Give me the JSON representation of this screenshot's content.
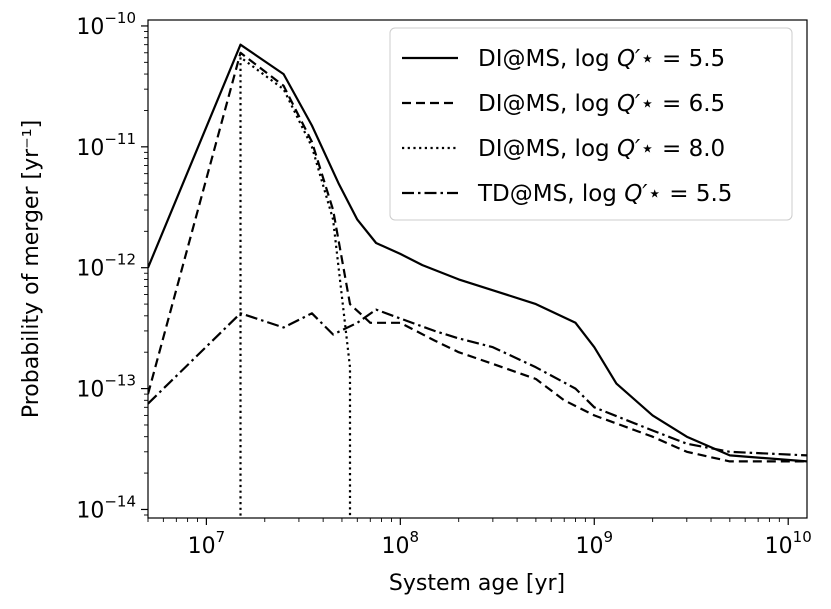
{
  "chart_data": {
    "type": "line",
    "xlabel": "System age [yr]",
    "ylabel": "Probability of merger [yr⁻¹]",
    "x_scale": "log",
    "y_scale": "log",
    "xlim": [
      5000000,
      12500000000
    ],
    "ylim": [
      8.5e-15,
      1.12e-10
    ],
    "x_ticks": [
      {
        "value": 10000000,
        "base": "10",
        "exp": "7"
      },
      {
        "value": 100000000,
        "base": "10",
        "exp": "8"
      },
      {
        "value": 1000000000,
        "base": "10",
        "exp": "9"
      },
      {
        "value": 10000000000,
        "base": "10",
        "exp": "10"
      }
    ],
    "y_ticks": [
      {
        "value": 1e-14,
        "base": "10",
        "exp": "−14"
      },
      {
        "value": 1e-13,
        "base": "10",
        "exp": "−13"
      },
      {
        "value": 1e-12,
        "base": "10",
        "exp": "−12"
      },
      {
        "value": 1e-11,
        "base": "10",
        "exp": "−11"
      },
      {
        "value": 1e-10,
        "base": "10",
        "exp": "−10"
      }
    ],
    "grid": false,
    "legend_position": "top-right",
    "series": [
      {
        "name": "DI@MS, log Q′⋆ = 5.5",
        "linestyle": "solid",
        "x": [
          5000000,
          15000000,
          25000000,
          35000000,
          48000000,
          60000000,
          75000000,
          100000000,
          130000000,
          200000000,
          300000000,
          500000000,
          800000000,
          1000000000,
          1300000000,
          2000000000,
          3000000000,
          5000000000,
          12500000000
        ],
        "y": [
          1e-12,
          7e-11,
          4e-11,
          1.5e-11,
          5e-12,
          2.5e-12,
          1.6e-12,
          1.3e-12,
          1.05e-12,
          8e-13,
          6.5e-13,
          5e-13,
          3.5e-13,
          2.2e-13,
          1.1e-13,
          6e-14,
          4e-14,
          2.8e-14,
          2.5e-14
        ]
      },
      {
        "name": "DI@MS, log Q′⋆ = 6.5",
        "linestyle": "dashed",
        "x": [
          5000000,
          15000000,
          25000000,
          35000000,
          45000000,
          55000000,
          70000000,
          100000000,
          150000000,
          200000000,
          300000000,
          500000000,
          700000000,
          1000000000,
          2000000000,
          3000000000,
          5000000000,
          12500000000
        ],
        "y": [
          9e-14,
          6e-11,
          3.2e-11,
          1.1e-11,
          3e-12,
          5e-13,
          3.5e-13,
          3.5e-13,
          2.5e-13,
          2e-13,
          1.6e-13,
          1.2e-13,
          8e-14,
          6e-14,
          4e-14,
          3e-14,
          2.5e-14,
          2.5e-14
        ]
      },
      {
        "name": "DI@MS, log Q′⋆ = 8.0",
        "linestyle": "dotted",
        "x": [
          15000000,
          15000000,
          25000000,
          35000000,
          45000000,
          55000000,
          55000000
        ],
        "y": [
          8.9e-15,
          5.5e-11,
          3e-11,
          1e-11,
          2.5e-12,
          1.5e-13,
          8.9e-15
        ]
      },
      {
        "name": "TD@MS, log Q′⋆ = 5.5",
        "linestyle": "dashdot",
        "x": [
          5000000,
          15000000,
          25000000,
          35000000,
          45000000,
          60000000,
          75000000,
          100000000,
          150000000,
          200000000,
          300000000,
          500000000,
          800000000,
          1000000000,
          2000000000,
          3000000000,
          5000000000,
          12500000000
        ],
        "y": [
          7.5e-14,
          4.2e-13,
          3.2e-13,
          4.2e-13,
          2.8e-13,
          3.5e-13,
          4.5e-13,
          3.8e-13,
          3e-13,
          2.6e-13,
          2.2e-13,
          1.5e-13,
          1e-13,
          7e-14,
          4.5e-14,
          3.5e-14,
          3e-14,
          2.8e-14
        ]
      }
    ],
    "legend": [
      {
        "linestyle": "solid",
        "label_prefix": "DI@MS, log",
        "label_suffix": "= 5.5"
      },
      {
        "linestyle": "dashed",
        "label_prefix": "DI@MS, log",
        "label_suffix": "= 6.5"
      },
      {
        "linestyle": "dotted",
        "label_prefix": "DI@MS, log",
        "label_suffix": "= 8.0"
      },
      {
        "linestyle": "dashdot",
        "label_prefix": "TD@MS, log",
        "label_suffix": "= 5.5"
      }
    ],
    "legend_symbol": "Q′⋆"
  }
}
